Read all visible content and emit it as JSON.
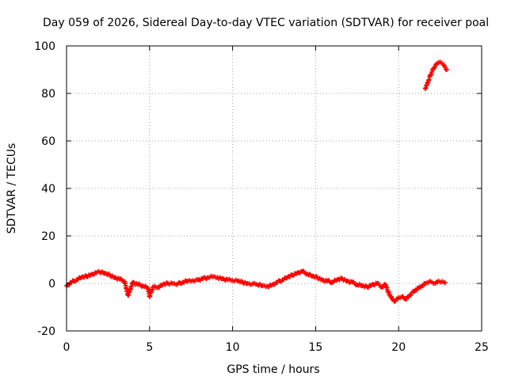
{
  "chart_data": {
    "type": "scatter",
    "title": "Day 059 of 2026, Sidereal Day-to-day VTEC variation (SDTVAR) for receiver poal",
    "xlabel": "GPS time / hours",
    "ylabel": "SDTVAR / TECUs",
    "xlim": [
      0,
      25
    ],
    "ylim": [
      -20,
      100
    ],
    "xticks": [
      0,
      5,
      10,
      15,
      20,
      25
    ],
    "yticks": [
      -20,
      0,
      20,
      40,
      60,
      80,
      100
    ],
    "grid": true,
    "legend": "none",
    "color": "#ff0000",
    "marker": "plus",
    "series": [
      {
        "name": "SDTVAR",
        "x": [
          0.0,
          0.3,
          0.6,
          0.9,
          1.2,
          1.5,
          1.8,
          2.0,
          2.3,
          2.6,
          2.9,
          3.2,
          3.5,
          3.6,
          3.7,
          4.0,
          4.3,
          4.6,
          4.9,
          5.0,
          5.1,
          5.2,
          5.5,
          5.8,
          6.1,
          6.4,
          6.7,
          7.0,
          7.3,
          7.6,
          7.9,
          8.2,
          8.5,
          8.8,
          9.1,
          9.4,
          9.7,
          10.0,
          10.3,
          10.6,
          10.9,
          11.2,
          11.5,
          11.8,
          12.1,
          12.4,
          12.7,
          13.0,
          13.3,
          13.6,
          13.9,
          14.2,
          14.5,
          14.8,
          15.1,
          15.4,
          15.7,
          16.0,
          16.3,
          16.6,
          16.9,
          17.2,
          17.5,
          17.8,
          18.1,
          18.4,
          18.7,
          19.0,
          19.2,
          19.4,
          19.6,
          19.8,
          20.0,
          20.2,
          20.4,
          20.6,
          20.8,
          21.0,
          21.2,
          21.4,
          21.6,
          21.8,
          22.0,
          22.2,
          22.4,
          22.6,
          22.8,
          21.6,
          21.7,
          21.8,
          21.9,
          22.0,
          22.1,
          22.2,
          22.3,
          22.4,
          22.5,
          22.6,
          22.7,
          22.8,
          22.9
        ],
        "y": [
          -1.0,
          0.5,
          1.5,
          2.5,
          3.0,
          3.8,
          4.5,
          4.8,
          4.2,
          3.5,
          2.5,
          1.8,
          0.8,
          -2.0,
          -5.0,
          0.5,
          -0.5,
          -1.0,
          -2.0,
          -5.5,
          -3.5,
          -1.5,
          -1.8,
          -0.5,
          0.0,
          0.0,
          -0.2,
          0.5,
          1.0,
          1.2,
          1.5,
          2.0,
          2.5,
          2.8,
          2.5,
          2.0,
          1.5,
          1.2,
          1.0,
          0.5,
          0.0,
          -0.2,
          -0.5,
          -1.0,
          -1.2,
          -0.5,
          0.5,
          1.5,
          2.5,
          3.5,
          4.5,
          5.0,
          4.0,
          3.0,
          2.5,
          1.5,
          1.0,
          0.5,
          1.5,
          2.0,
          1.0,
          0.5,
          -0.5,
          -1.0,
          -1.5,
          -0.5,
          0.0,
          -1.5,
          -0.5,
          -4.0,
          -6.5,
          -7.5,
          -6.0,
          -5.5,
          -6.5,
          -5.5,
          -4.0,
          -3.0,
          -2.0,
          -1.0,
          0.0,
          0.5,
          0.5,
          0.0,
          1.0,
          0.8,
          0.3,
          82.0,
          83.5,
          85.5,
          87.5,
          89.0,
          90.5,
          91.5,
          92.5,
          93.0,
          93.2,
          92.8,
          92.0,
          91.0,
          90.0
        ]
      }
    ]
  }
}
